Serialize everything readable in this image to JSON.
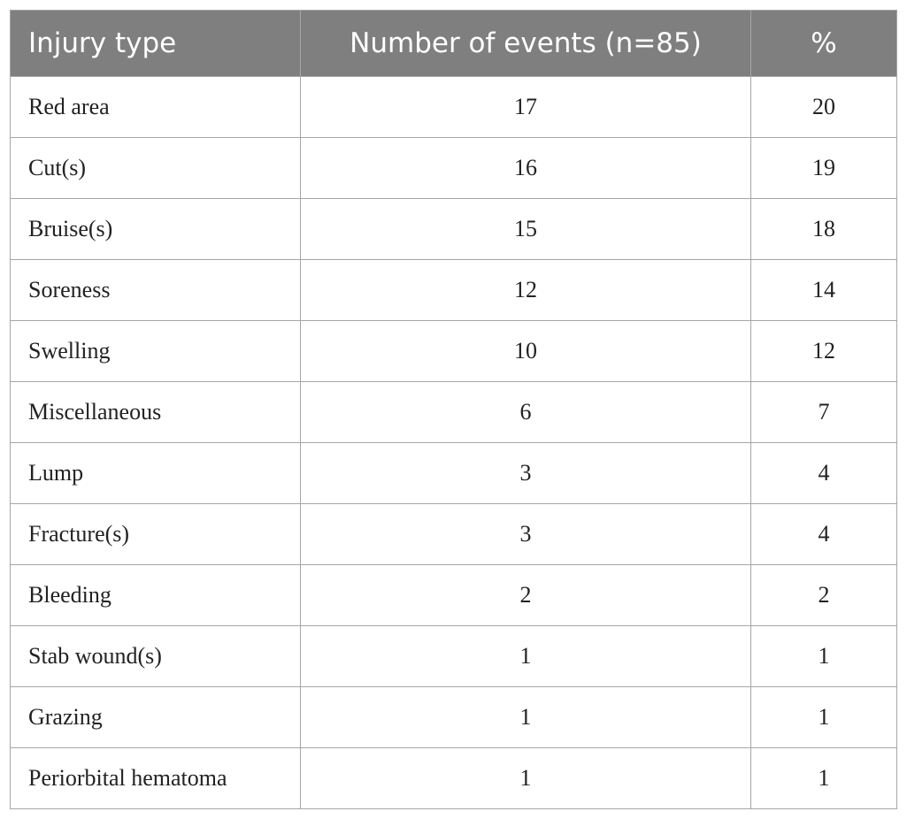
{
  "table": {
    "headers": [
      "Injury type",
      "Number of events (n=85)",
      "%"
    ],
    "rows": [
      {
        "type": "Red area",
        "events": "17",
        "pct": "20"
      },
      {
        "type": "Cut(s)",
        "events": "16",
        "pct": "19"
      },
      {
        "type": "Bruise(s)",
        "events": "15",
        "pct": "18"
      },
      {
        "type": "Soreness",
        "events": "12",
        "pct": "14"
      },
      {
        "type": "Swelling",
        "events": "10",
        "pct": "12"
      },
      {
        "type": "Miscellaneous",
        "events": "6",
        "pct": "7"
      },
      {
        "type": "Lump",
        "events": "3",
        "pct": "4"
      },
      {
        "type": "Fracture(s)",
        "events": "3",
        "pct": "4"
      },
      {
        "type": "Bleeding",
        "events": "2",
        "pct": "2"
      },
      {
        "type": "Stab wound(s)",
        "events": "1",
        "pct": "1"
      },
      {
        "type": "Grazing",
        "events": "1",
        "pct": "1"
      },
      {
        "type": "Periorbital hematoma",
        "events": "1",
        "pct": "1"
      }
    ]
  },
  "colors": {
    "header_bg": "#7f7f7f",
    "header_text": "#ffffff",
    "border": "#a6a6a6"
  }
}
